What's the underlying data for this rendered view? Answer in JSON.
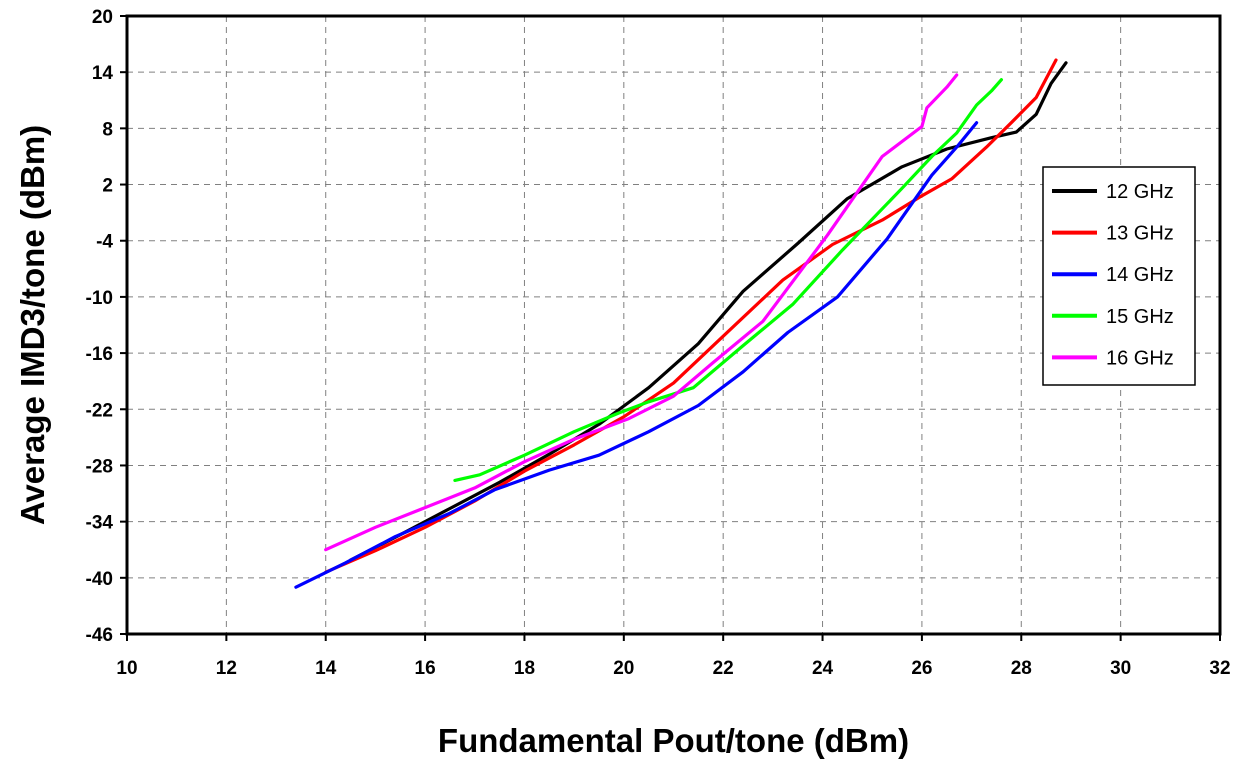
{
  "chart_data": {
    "type": "line",
    "title": "",
    "xlabel": "Fundamental Pout/tone (dBm)",
    "ylabel": "Average IMD3/tone (dBm)",
    "xlim": [
      10,
      32
    ],
    "ylim": [
      -46,
      20
    ],
    "xticks": [
      10,
      12,
      14,
      16,
      18,
      20,
      22,
      24,
      26,
      28,
      30,
      32
    ],
    "yticks": [
      20,
      14,
      8,
      2,
      -4,
      -10,
      -16,
      -22,
      -28,
      -34,
      -40,
      -46
    ],
    "grid": true,
    "legend_position": "right",
    "series": [
      {
        "name": "12 GHz",
        "color": "#000000",
        "points": [
          [
            14.5,
            -38.1
          ],
          [
            15.5,
            -35.4
          ],
          [
            16.5,
            -32.6
          ],
          [
            17.5,
            -29.8
          ],
          [
            18.5,
            -26.8
          ],
          [
            19.5,
            -23.6
          ],
          [
            20.5,
            -19.7
          ],
          [
            21.5,
            -15.0
          ],
          [
            22.4,
            -9.4
          ],
          [
            23.5,
            -4.3
          ],
          [
            24.5,
            0.5
          ],
          [
            25.6,
            3.9
          ],
          [
            26.5,
            5.8
          ],
          [
            27.4,
            7.0
          ],
          [
            27.9,
            7.6
          ],
          [
            28.3,
            9.5
          ],
          [
            28.6,
            12.8
          ],
          [
            28.9,
            15.0
          ]
        ]
      },
      {
        "name": "13 GHz",
        "color": "#ff0000",
        "points": [
          [
            14.0,
            -39.4
          ],
          [
            15.0,
            -37.1
          ],
          [
            16.0,
            -34.6
          ],
          [
            17.0,
            -31.8
          ],
          [
            18.0,
            -28.6
          ],
          [
            19.0,
            -25.8
          ],
          [
            20.0,
            -22.8
          ],
          [
            21.0,
            -19.2
          ],
          [
            22.0,
            -14.2
          ],
          [
            23.2,
            -8.2
          ],
          [
            24.2,
            -4.4
          ],
          [
            25.2,
            -1.8
          ],
          [
            26.0,
            0.8
          ],
          [
            26.6,
            2.6
          ],
          [
            27.3,
            6.0
          ],
          [
            27.8,
            8.6
          ],
          [
            28.3,
            11.3
          ],
          [
            28.7,
            15.3
          ]
        ]
      },
      {
        "name": "14 GHz",
        "color": "#0000ff",
        "points": [
          [
            13.4,
            -41.0
          ],
          [
            14.4,
            -38.4
          ],
          [
            15.4,
            -35.6
          ],
          [
            16.5,
            -33.1
          ],
          [
            17.4,
            -30.6
          ],
          [
            18.5,
            -28.5
          ],
          [
            19.5,
            -26.9
          ],
          [
            20.5,
            -24.4
          ],
          [
            21.5,
            -21.6
          ],
          [
            22.4,
            -18.0
          ],
          [
            23.3,
            -13.8
          ],
          [
            24.3,
            -10.0
          ],
          [
            25.3,
            -3.8
          ],
          [
            26.2,
            3.0
          ],
          [
            26.7,
            6.0
          ],
          [
            27.1,
            8.6
          ]
        ]
      },
      {
        "name": "15 GHz",
        "color": "#00ff00",
        "points": [
          [
            16.6,
            -29.6
          ],
          [
            17.1,
            -29.0
          ],
          [
            18.0,
            -26.9
          ],
          [
            19.0,
            -24.4
          ],
          [
            19.9,
            -22.4
          ],
          [
            20.5,
            -21.2
          ],
          [
            21.4,
            -19.7
          ],
          [
            22.4,
            -15.2
          ],
          [
            23.4,
            -10.8
          ],
          [
            24.4,
            -5.0
          ],
          [
            25.6,
            1.6
          ],
          [
            26.2,
            5.0
          ],
          [
            26.7,
            7.5
          ],
          [
            27.1,
            10.5
          ],
          [
            27.4,
            12.0
          ],
          [
            27.6,
            13.2
          ]
        ]
      },
      {
        "name": "16 GHz",
        "color": "#ff00ff",
        "points": [
          [
            14.0,
            -37.0
          ],
          [
            15.0,
            -34.6
          ],
          [
            16.0,
            -32.5
          ],
          [
            17.0,
            -30.4
          ],
          [
            18.0,
            -27.6
          ],
          [
            19.0,
            -25.2
          ],
          [
            20.1,
            -23.0
          ],
          [
            21.0,
            -20.6
          ],
          [
            21.8,
            -17.0
          ],
          [
            22.8,
            -12.6
          ],
          [
            24.1,
            -3.4
          ],
          [
            25.2,
            5.0
          ],
          [
            26.0,
            8.2
          ],
          [
            26.1,
            10.2
          ],
          [
            26.5,
            12.4
          ],
          [
            26.7,
            13.7
          ]
        ]
      }
    ]
  }
}
